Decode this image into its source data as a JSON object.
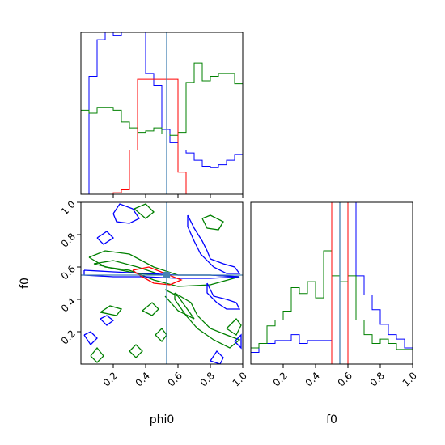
{
  "chart_data": {
    "type": "corner",
    "parameters": [
      "phi0",
      "f0"
    ],
    "truth": {
      "phi0": 0.53,
      "f0": 0.55
    },
    "colors": {
      "blue": "#0000ff",
      "green": "#008000",
      "red": "#ff0000",
      "truth": "#4682b4"
    },
    "panels": [
      {
        "id": "hist-phi0",
        "type": "step-histogram",
        "xlim": [
          0,
          1
        ],
        "bin_edges": [
          0.0,
          0.05,
          0.1,
          0.15,
          0.2,
          0.25,
          0.3,
          0.35,
          0.4,
          0.45,
          0.5,
          0.55,
          0.6,
          0.65,
          0.7,
          0.75,
          0.8,
          0.85,
          0.9,
          0.95,
          1.0
        ],
        "series": [
          {
            "color": "blue",
            "values": [
              0.0,
              0.8,
              1.05,
              1.1,
              1.08,
              1.1,
              1.1,
              1.1,
              0.82,
              0.74,
              0.44,
              0.35,
              0.3,
              0.28,
              0.23,
              0.19,
              0.18,
              0.2,
              0.23,
              0.27
            ]
          },
          {
            "color": "green",
            "values": [
              0.57,
              0.55,
              0.59,
              0.59,
              0.57,
              0.49,
              0.45,
              0.42,
              0.43,
              0.45,
              0.41,
              0.4,
              0.42,
              0.76,
              0.89,
              0.77,
              0.8,
              0.82,
              0.82,
              0.75
            ]
          },
          {
            "color": "red",
            "values": [
              0.0,
              0.0,
              0.0,
              0.0,
              0.01,
              0.03,
              0.3,
              0.78,
              0.78,
              0.78,
              0.78,
              0.78,
              0.15,
              0.0,
              0.0,
              0.0,
              0.0,
              0.0,
              0.0,
              0.0
            ]
          }
        ]
      },
      {
        "id": "scatter-phi0-f0",
        "type": "contour",
        "xlim": [
          0,
          1
        ],
        "ylim": [
          0,
          1
        ],
        "xticks": [
          "0.2",
          "0.4",
          "0.6",
          "0.8",
          "1.0"
        ],
        "yticks": [
          "0.2",
          "0.4",
          "0.6",
          "0.8",
          "1.0"
        ],
        "xlabel": "phi0",
        "ylabel": "f0",
        "contours": [
          {
            "color": "green",
            "points": [
              [
                0.05,
                0.66
              ],
              [
                0.15,
                0.7
              ],
              [
                0.3,
                0.68
              ],
              [
                0.45,
                0.6
              ],
              [
                0.6,
                0.55
              ],
              [
                0.8,
                0.55
              ],
              [
                0.98,
                0.54
              ],
              [
                0.8,
                0.49
              ],
              [
                0.6,
                0.48
              ],
              [
                0.45,
                0.52
              ],
              [
                0.3,
                0.58
              ],
              [
                0.15,
                0.6
              ],
              [
                0.05,
                0.66
              ]
            ]
          },
          {
            "color": "green",
            "points": [
              [
                0.08,
                0.62
              ],
              [
                0.2,
                0.64
              ],
              [
                0.35,
                0.6
              ],
              [
                0.5,
                0.55
              ],
              [
                0.35,
                0.56
              ],
              [
                0.2,
                0.59
              ],
              [
                0.08,
                0.62
              ]
            ]
          },
          {
            "color": "green",
            "points": [
              [
                0.58,
                0.44
              ],
              [
                0.68,
                0.38
              ],
              [
                0.72,
                0.3
              ],
              [
                0.8,
                0.22
              ],
              [
                0.9,
                0.18
              ],
              [
                0.98,
                0.15
              ],
              [
                0.92,
                0.1
              ],
              [
                0.82,
                0.15
              ],
              [
                0.72,
                0.22
              ],
              [
                0.65,
                0.3
              ],
              [
                0.58,
                0.4
              ],
              [
                0.58,
                0.44
              ]
            ]
          },
          {
            "color": "green",
            "points": [
              [
                0.52,
                0.46
              ],
              [
                0.6,
                0.42
              ],
              [
                0.65,
                0.35
              ],
              [
                0.7,
                0.28
              ],
              [
                0.6,
                0.33
              ],
              [
                0.52,
                0.42
              ]
            ]
          },
          {
            "color": "green",
            "points": [
              [
                0.75,
                0.9
              ],
              [
                0.8,
                0.92
              ],
              [
                0.88,
                0.88
              ],
              [
                0.85,
                0.83
              ],
              [
                0.78,
                0.84
              ],
              [
                0.75,
                0.9
              ]
            ]
          },
          {
            "color": "green",
            "points": [
              [
                0.33,
                0.96
              ],
              [
                0.4,
                0.99
              ],
              [
                0.45,
                0.94
              ],
              [
                0.4,
                0.9
              ],
              [
                0.33,
                0.96
              ]
            ]
          },
          {
            "color": "green",
            "points": [
              [
                0.12,
                0.32
              ],
              [
                0.18,
                0.36
              ],
              [
                0.25,
                0.34
              ],
              [
                0.22,
                0.3
              ],
              [
                0.12,
                0.32
              ]
            ]
          },
          {
            "color": "green",
            "points": [
              [
                0.38,
                0.33
              ],
              [
                0.44,
                0.38
              ],
              [
                0.48,
                0.34
              ],
              [
                0.44,
                0.3
              ],
              [
                0.38,
                0.33
              ]
            ]
          },
          {
            "color": "green",
            "points": [
              [
                0.9,
                0.22
              ],
              [
                0.96,
                0.28
              ],
              [
                0.99,
                0.24
              ],
              [
                0.96,
                0.18
              ],
              [
                0.9,
                0.22
              ]
            ]
          },
          {
            "color": "green",
            "points": [
              [
                0.06,
                0.05
              ],
              [
                0.1,
                0.1
              ],
              [
                0.14,
                0.05
              ],
              [
                0.1,
                0.01
              ],
              [
                0.06,
                0.05
              ]
            ]
          },
          {
            "color": "green",
            "points": [
              [
                0.3,
                0.08
              ],
              [
                0.34,
                0.12
              ],
              [
                0.38,
                0.08
              ],
              [
                0.34,
                0.04
              ],
              [
                0.3,
                0.08
              ]
            ]
          },
          {
            "color": "green",
            "points": [
              [
                0.46,
                0.18
              ],
              [
                0.5,
                0.22
              ],
              [
                0.53,
                0.18
              ],
              [
                0.5,
                0.14
              ],
              [
                0.46,
                0.18
              ]
            ]
          },
          {
            "color": "blue",
            "points": [
              [
                0.02,
                0.58
              ],
              [
                0.2,
                0.57
              ],
              [
                0.4,
                0.56
              ],
              [
                0.6,
                0.55
              ],
              [
                0.8,
                0.55
              ],
              [
                0.98,
                0.54
              ],
              [
                0.8,
                0.53
              ],
              [
                0.6,
                0.53
              ],
              [
                0.4,
                0.54
              ],
              [
                0.2,
                0.54
              ],
              [
                0.02,
                0.55
              ],
              [
                0.02,
                0.58
              ]
            ]
          },
          {
            "color": "blue",
            "points": [
              [
                0.2,
                0.93
              ],
              [
                0.24,
                0.99
              ],
              [
                0.32,
                0.96
              ],
              [
                0.36,
                0.9
              ],
              [
                0.3,
                0.87
              ],
              [
                0.22,
                0.88
              ],
              [
                0.2,
                0.93
              ]
            ]
          },
          {
            "color": "blue",
            "points": [
              [
                0.66,
                0.92
              ],
              [
                0.7,
                0.84
              ],
              [
                0.75,
                0.76
              ],
              [
                0.78,
                0.7
              ],
              [
                0.8,
                0.65
              ],
              [
                0.88,
                0.62
              ],
              [
                0.95,
                0.6
              ],
              [
                0.98,
                0.56
              ],
              [
                0.9,
                0.56
              ],
              [
                0.82,
                0.6
              ],
              [
                0.74,
                0.68
              ],
              [
                0.7,
                0.76
              ],
              [
                0.66,
                0.85
              ],
              [
                0.66,
                0.92
              ]
            ]
          },
          {
            "color": "blue",
            "points": [
              [
                0.78,
                0.5
              ],
              [
                0.82,
                0.42
              ],
              [
                0.9,
                0.4
              ],
              [
                0.96,
                0.38
              ],
              [
                0.98,
                0.34
              ],
              [
                0.9,
                0.34
              ],
              [
                0.84,
                0.38
              ],
              [
                0.78,
                0.44
              ],
              [
                0.78,
                0.5
              ]
            ]
          },
          {
            "color": "blue",
            "points": [
              [
                0.1,
                0.78
              ],
              [
                0.16,
                0.82
              ],
              [
                0.2,
                0.78
              ],
              [
                0.14,
                0.74
              ],
              [
                0.1,
                0.78
              ]
            ]
          },
          {
            "color": "blue",
            "points": [
              [
                0.02,
                0.18
              ],
              [
                0.06,
                0.2
              ],
              [
                0.1,
                0.16
              ],
              [
                0.06,
                0.12
              ],
              [
                0.02,
                0.18
              ]
            ]
          },
          {
            "color": "blue",
            "points": [
              [
                0.8,
                0.02
              ],
              [
                0.84,
                0.08
              ],
              [
                0.88,
                0.04
              ],
              [
                0.86,
                0.0
              ],
              [
                0.8,
                0.02
              ]
            ]
          },
          {
            "color": "blue",
            "points": [
              [
                0.95,
                0.14
              ],
              [
                0.99,
                0.18
              ],
              [
                0.99,
                0.1
              ],
              [
                0.95,
                0.14
              ]
            ]
          },
          {
            "color": "blue",
            "points": [
              [
                0.12,
                0.28
              ],
              [
                0.16,
                0.3
              ],
              [
                0.2,
                0.27
              ],
              [
                0.16,
                0.24
              ],
              [
                0.12,
                0.28
              ]
            ]
          },
          {
            "color": "red",
            "points": [
              [
                0.32,
                0.58
              ],
              [
                0.42,
                0.6
              ],
              [
                0.52,
                0.56
              ],
              [
                0.62,
                0.52
              ],
              [
                0.55,
                0.49
              ],
              [
                0.45,
                0.5
              ],
              [
                0.36,
                0.55
              ],
              [
                0.32,
                0.58
              ]
            ]
          }
        ]
      },
      {
        "id": "hist-f0",
        "type": "step-histogram",
        "xlim": [
          0,
          1
        ],
        "xticks": [
          "0.2",
          "0.4",
          "0.6",
          "0.8",
          "1.0"
        ],
        "xlabel": "f0",
        "bin_edges": [
          0.0,
          0.05,
          0.1,
          0.15,
          0.2,
          0.25,
          0.3,
          0.35,
          0.4,
          0.45,
          0.5,
          0.55,
          0.6,
          0.65,
          0.7,
          0.75,
          0.8,
          0.85,
          0.9,
          0.95,
          1.0
        ],
        "series": [
          {
            "color": "blue",
            "values": [
              0.08,
              0.14,
              0.14,
              0.16,
              0.16,
              0.2,
              0.14,
              0.16,
              0.16,
              0.16,
              0.3,
              1.1,
              1.1,
              0.6,
              0.47,
              0.37,
              0.27,
              0.2,
              0.17,
              0.11
            ]
          },
          {
            "color": "green",
            "values": [
              0.11,
              0.14,
              0.26,
              0.3,
              0.36,
              0.52,
              0.48,
              0.56,
              0.45,
              0.77,
              0.6,
              0.56,
              0.6,
              0.3,
              0.2,
              0.14,
              0.17,
              0.14,
              0.1,
              0.1
            ]
          },
          {
            "color": "red",
            "values": [
              0.0,
              0.0,
              0.0,
              0.0,
              0.0,
              0.0,
              0.0,
              0.0,
              0.0,
              0.0,
              1.1,
              1.1,
              0.0,
              0.0,
              0.0,
              0.0,
              0.0,
              0.0,
              0.0,
              0.0
            ]
          }
        ]
      }
    ]
  }
}
